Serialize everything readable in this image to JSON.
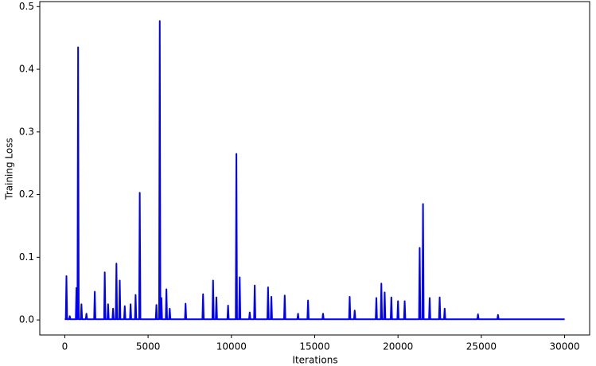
{
  "chart_data": {
    "type": "line",
    "xlabel": "Iterations",
    "ylabel": "Training Loss",
    "xlim": [
      -1500,
      31500
    ],
    "ylim": [
      -0.024,
      0.508
    ],
    "xticks": [
      0,
      5000,
      10000,
      15000,
      20000,
      25000,
      30000
    ],
    "yticks": [
      {
        "value": 0,
        "label": "0.0"
      },
      0.1,
      0.2,
      0.3,
      0.4,
      0.5
    ],
    "grid": false,
    "series": [
      {
        "color": "#0000ff",
        "x": [
          0,
          60,
          100,
          140,
          260,
          300,
          340,
          660,
          700,
          740,
          760,
          800,
          840,
          960,
          1000,
          1040,
          1260,
          1300,
          1340,
          1760,
          1800,
          1840,
          2360,
          2400,
          2440,
          2560,
          2600,
          2640,
          2860,
          2900,
          2940,
          3060,
          3100,
          3140,
          3260,
          3300,
          3340,
          3560,
          3600,
          3640,
          3910,
          3950,
          3990,
          4210,
          4250,
          4290,
          4460,
          4500,
          4540,
          5460,
          5500,
          5540,
          5660,
          5700,
          5740,
          5760,
          5800,
          5840,
          6060,
          6100,
          6140,
          6260,
          6300,
          6340,
          7210,
          7250,
          7290,
          8260,
          8300,
          8340,
          8860,
          8900,
          8940,
          9060,
          9100,
          9140,
          9760,
          9800,
          9840,
          10260,
          10300,
          10340,
          10460,
          10500,
          10540,
          11060,
          11100,
          11140,
          11360,
          11400,
          11440,
          12160,
          12200,
          12240,
          12360,
          12400,
          12440,
          13160,
          13200,
          13240,
          13960,
          14000,
          14040,
          14560,
          14600,
          14640,
          15460,
          15500,
          15540,
          17060,
          17100,
          17140,
          17360,
          17400,
          17440,
          18660,
          18700,
          18740,
          18960,
          19000,
          19040,
          19160,
          19200,
          19240,
          19560,
          19600,
          19640,
          19960,
          20000,
          20040,
          20360,
          20400,
          20440,
          21260,
          21300,
          21340,
          21460,
          21500,
          21540,
          21860,
          21900,
          21940,
          22460,
          22500,
          22540,
          22760,
          22800,
          22840,
          24760,
          24800,
          24840,
          25960,
          26000,
          26040,
          30000
        ],
        "values": [
          0.001,
          0.001,
          0.07,
          0.001,
          0.001,
          0.006,
          0.001,
          0.001,
          0.051,
          0.001,
          0.001,
          0.435,
          0.001,
          0.001,
          0.025,
          0.001,
          0.001,
          0.01,
          0.001,
          0.001,
          0.045,
          0.001,
          0.001,
          0.076,
          0.001,
          0.001,
          0.025,
          0.001,
          0.001,
          0.018,
          0.001,
          0.001,
          0.09,
          0.001,
          0.001,
          0.063,
          0.001,
          0.001,
          0.022,
          0.001,
          0.001,
          0.025,
          0.001,
          0.001,
          0.04,
          0.001,
          0.001,
          0.203,
          0.001,
          0.001,
          0.024,
          0.001,
          0.001,
          0.477,
          0.001,
          0.001,
          0.035,
          0.001,
          0.001,
          0.049,
          0.001,
          0.001,
          0.018,
          0.001,
          0.001,
          0.026,
          0.001,
          0.001,
          0.041,
          0.001,
          0.001,
          0.063,
          0.001,
          0.001,
          0.036,
          0.001,
          0.001,
          0.023,
          0.001,
          0.001,
          0.265,
          0.001,
          0.001,
          0.068,
          0.001,
          0.001,
          0.012,
          0.001,
          0.001,
          0.055,
          0.001,
          0.001,
          0.052,
          0.001,
          0.001,
          0.037,
          0.001,
          0.001,
          0.039,
          0.001,
          0.001,
          0.01,
          0.001,
          0.001,
          0.031,
          0.001,
          0.001,
          0.01,
          0.001,
          0.001,
          0.037,
          0.001,
          0.001,
          0.015,
          0.001,
          0.001,
          0.035,
          0.001,
          0.001,
          0.058,
          0.001,
          0.001,
          0.044,
          0.001,
          0.001,
          0.036,
          0.001,
          0.001,
          0.03,
          0.001,
          0.001,
          0.03,
          0.001,
          0.001,
          0.115,
          0.001,
          0.001,
          0.185,
          0.001,
          0.001,
          0.035,
          0.001,
          0.001,
          0.036,
          0.001,
          0.001,
          0.018,
          0.001,
          0.001,
          0.009,
          0.001,
          0.001,
          0.008,
          0.001,
          0.001
        ]
      }
    ]
  }
}
